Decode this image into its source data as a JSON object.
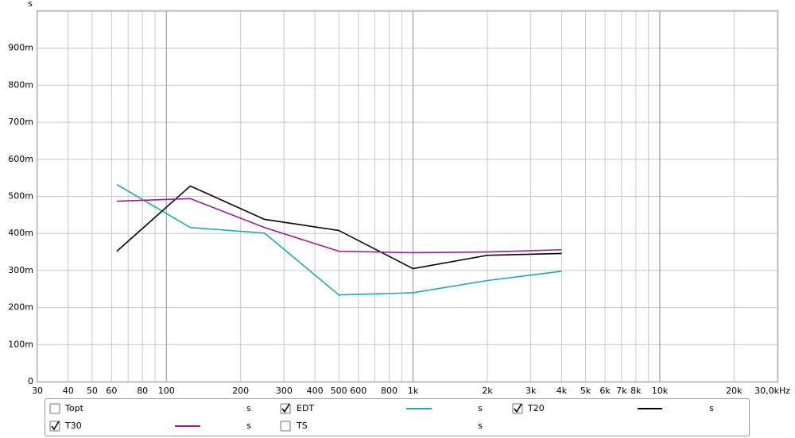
{
  "chart_data": {
    "type": "line",
    "ylabel": "s",
    "x": [
      63,
      125,
      250,
      500,
      1000,
      2000,
      4000
    ],
    "series": [
      {
        "name": "EDT",
        "color": "#1aacac",
        "checked": true,
        "values": [
          0.532,
          0.416,
          0.401,
          0.234,
          0.24,
          0.273,
          0.298
        ]
      },
      {
        "name": "T20",
        "color": "#000000",
        "checked": true,
        "values": [
          0.352,
          0.528,
          0.438,
          0.408,
          0.305,
          0.341,
          0.346
        ]
      },
      {
        "name": "T30",
        "color": "#9b1b9b",
        "checked": true,
        "values": [
          0.487,
          0.494,
          0.416,
          0.352,
          0.348,
          0.35,
          0.356
        ]
      }
    ],
    "other_legend_entries": [
      {
        "name": "Topt",
        "color": "#2a8a2a",
        "checked": false
      },
      {
        "name": "TS",
        "color": "#b8901a",
        "checked": false
      }
    ],
    "legend_unit": "s",
    "xscale": "log",
    "xlim": [
      30,
      30000
    ],
    "xticks": [
      30,
      40,
      50,
      60,
      80,
      100,
      200,
      300,
      400,
      500,
      600,
      800,
      {
        "value": 1000,
        "label": "1k"
      },
      {
        "value": 2000,
        "label": "2k"
      },
      {
        "value": 3000,
        "label": "3k"
      },
      {
        "value": 4000,
        "label": "4k"
      },
      {
        "value": 5000,
        "label": "5k"
      },
      {
        "value": 6000,
        "label": "6k"
      },
      {
        "value": 7000,
        "label": "7k"
      },
      {
        "value": 8000,
        "label": "8k"
      },
      {
        "value": 10000,
        "label": "10k"
      },
      {
        "value": 20000,
        "label": "20k"
      },
      {
        "value": 30000,
        "label": "30,0kHz"
      }
    ],
    "x_minor_gridlines": [
      70,
      90,
      700,
      900,
      9000
    ],
    "ylim": [
      0,
      1
    ],
    "yticks": [
      0,
      {
        "value": 0.1,
        "label": "100m"
      },
      {
        "value": 0.2,
        "label": "200m"
      },
      {
        "value": 0.3,
        "label": "300m"
      },
      {
        "value": 0.4,
        "label": "400m"
      },
      {
        "value": 0.5,
        "label": "500m"
      },
      {
        "value": 0.6,
        "label": "600m"
      },
      {
        "value": 0.7,
        "label": "700m"
      },
      {
        "value": 0.8,
        "label": "800m"
      },
      {
        "value": 0.9,
        "label": "900m"
      }
    ],
    "grid": true
  }
}
